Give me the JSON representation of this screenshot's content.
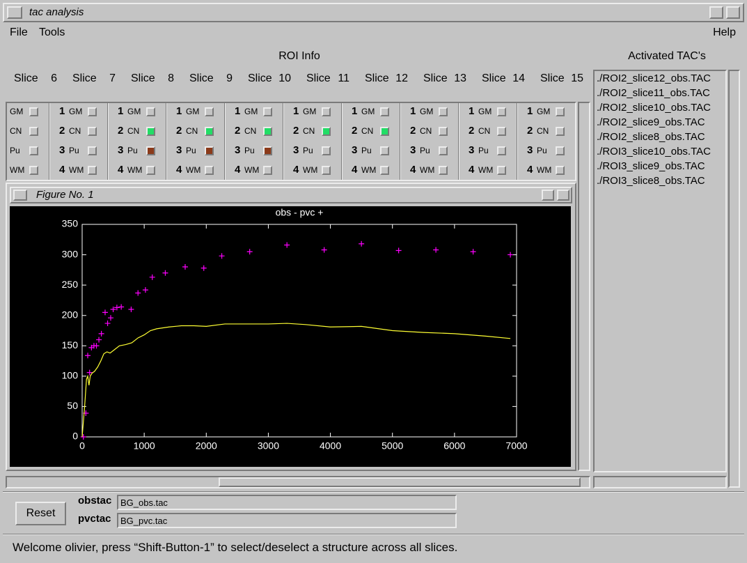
{
  "window_title": "tac analysis",
  "menu": [
    "File",
    "Tools"
  ],
  "help_menu": "Help",
  "roi_info_title": "ROI Info",
  "activated_title": "Activated TAC's",
  "slices": [
    {
      "label": "Slice",
      "number": 6
    },
    {
      "label": "Slice",
      "number": 7
    },
    {
      "label": "Slice",
      "number": 8
    },
    {
      "label": "Slice",
      "number": 9
    },
    {
      "label": "Slice",
      "number": 10
    },
    {
      "label": "Slice",
      "number": 11
    },
    {
      "label": "Slice",
      "number": 12
    },
    {
      "label": "Slice",
      "number": 13
    },
    {
      "label": "Slice",
      "number": 14
    },
    {
      "label": "Slice",
      "number": 15
    }
  ],
  "structures": [
    {
      "number": 1,
      "name": "GM"
    },
    {
      "number": 2,
      "name": "CN"
    },
    {
      "number": 3,
      "name": "Pu"
    },
    {
      "number": 4,
      "name": "WM"
    }
  ],
  "checks": [
    [
      null,
      null,
      null,
      null
    ],
    [
      null,
      null,
      null,
      null
    ],
    [
      null,
      "#22dd66",
      "#8b3a1a",
      null
    ],
    [
      null,
      "#22dd66",
      "#8b3a1a",
      null
    ],
    [
      null,
      "#22dd66",
      "#8b3a1a",
      null
    ],
    [
      null,
      "#22dd66",
      null,
      null
    ],
    [
      null,
      "#22dd66",
      null,
      null
    ],
    [
      null,
      null,
      null,
      null
    ],
    [
      null,
      null,
      null,
      null
    ],
    [
      null,
      null,
      null,
      null
    ]
  ],
  "activated_tacs": [
    "./ROI2_slice12_obs.TAC",
    "./ROI2_slice11_obs.TAC",
    "./ROI2_slice10_obs.TAC",
    "./ROI2_slice9_obs.TAC",
    "./ROI2_slice8_obs.TAC",
    "./ROI3_slice10_obs.TAC",
    "./ROI3_slice9_obs.TAC",
    "./ROI3_slice8_obs.TAC"
  ],
  "figure_title": "Figure No. 1",
  "chart_data": {
    "type": "scatter",
    "title": "obs - pvc +",
    "xlim": [
      0,
      7000
    ],
    "ylim": [
      0,
      350
    ],
    "xticks": [
      0,
      1000,
      2000,
      3000,
      4000,
      5000,
      6000,
      7000
    ],
    "yticks": [
      0,
      50,
      100,
      150,
      200,
      250,
      300,
      350
    ],
    "background": "#000000",
    "axis_color": "#ffffff",
    "series": [
      {
        "mode": "markers",
        "color": "#ff00ff",
        "x": [
          20,
          60,
          90,
          120,
          150,
          190,
          230,
          270,
          310,
          370,
          410,
          460,
          500,
          560,
          630,
          790,
          900,
          1020,
          1130,
          1340,
          1660,
          1960,
          2250,
          2700,
          3300,
          3900,
          4500,
          5100,
          5700,
          6300,
          6900
        ],
        "values": [
          0,
          39,
          134,
          106,
          147,
          150,
          150,
          160,
          170,
          205,
          187,
          196,
          210,
          213,
          214,
          210,
          237,
          242,
          263,
          270,
          280,
          278,
          298,
          305,
          316,
          308,
          318,
          307,
          308,
          305,
          300
        ]
      },
      {
        "mode": "lines",
        "color": "#ffff33",
        "x": [
          0,
          40,
          70,
          90,
          110,
          130,
          160,
          200,
          250,
          300,
          350,
          400,
          450,
          500,
          600,
          700,
          800,
          900,
          1000,
          1100,
          1200,
          1400,
          1600,
          1800,
          2000,
          2300,
          2600,
          3000,
          3300,
          3600,
          4000,
          4500,
          5000,
          5500,
          6000,
          6500,
          6900
        ],
        "values": [
          0,
          50,
          95,
          100,
          85,
          100,
          105,
          108,
          115,
          125,
          137,
          140,
          138,
          142,
          150,
          152,
          155,
          163,
          168,
          175,
          178,
          181,
          183,
          183,
          182,
          186,
          186,
          186,
          187,
          185,
          181,
          182,
          175,
          172,
          170,
          166,
          162
        ]
      }
    ]
  },
  "reset_button": "Reset",
  "fields": [
    {
      "label": "obstac",
      "value": "BG_obs.tac"
    },
    {
      "label": "pvctac",
      "value": "BG_pvc.tac"
    }
  ],
  "status": "Welcome olivier, press “Shift-Button-1” to select/deselect a structure across all slices."
}
